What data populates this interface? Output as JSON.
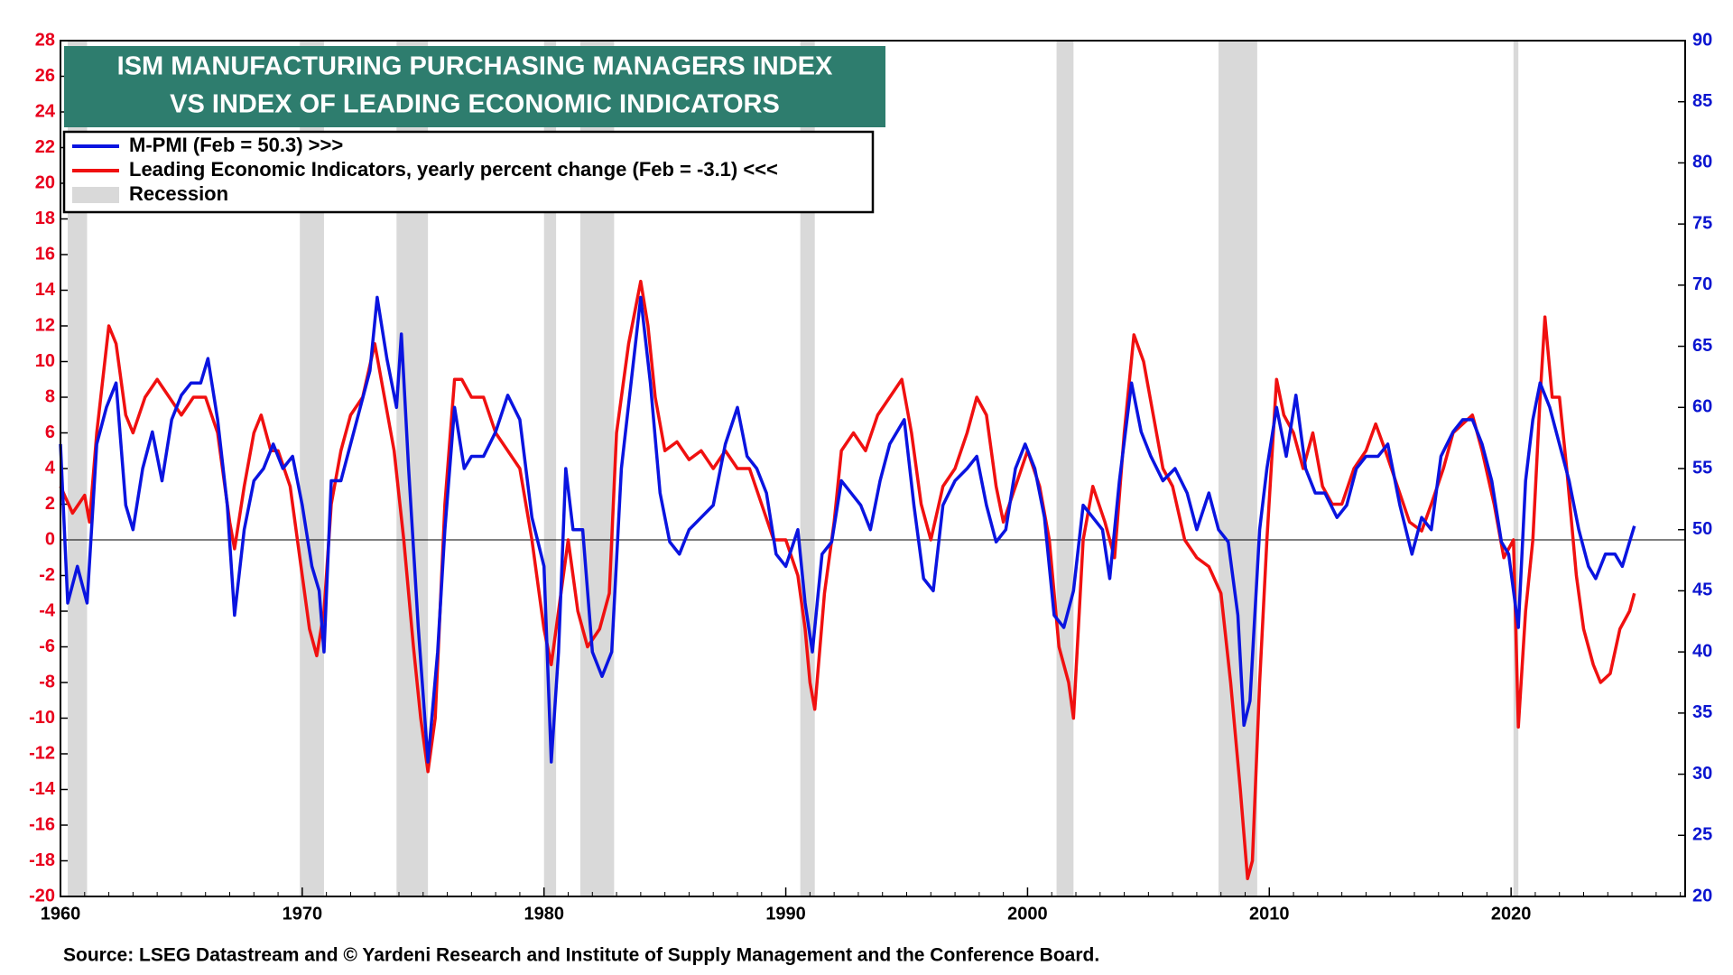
{
  "chart_data": {
    "type": "line",
    "title": [
      "ISM MANUFACTURING PURCHASING MANAGERS INDEX",
      "VS INDEX OF LEADING  ECONOMIC  INDICATORS"
    ],
    "source": "Source: LSEG Datastream and © Yardeni Research and Institute of Supply Management and the Conference Board.",
    "xlim": [
      1960,
      2027.2
    ],
    "xticks": [
      1960,
      1970,
      1980,
      1990,
      2000,
      2010,
      2020
    ],
    "ylim": [
      -20,
      28
    ],
    "yticks": [
      -20,
      -18,
      -16,
      -14,
      -12,
      -10,
      -8,
      -6,
      -4,
      -2,
      0,
      2,
      4,
      6,
      8,
      10,
      12,
      14,
      16,
      18,
      20,
      22,
      24,
      26,
      28
    ],
    "ytick_color": "#e8001c",
    "y2lim": [
      20,
      90
    ],
    "y2ticks": [
      20,
      25,
      30,
      35,
      40,
      45,
      50,
      55,
      60,
      65,
      70,
      75,
      80,
      85,
      90
    ],
    "y2tick_color": "#0a14d0",
    "reference_line": 0,
    "recession_label": "Recession",
    "recession_color": "#d9d9d9",
    "recessions": [
      [
        1960.3,
        1961.1
      ],
      [
        1969.9,
        1970.9
      ],
      [
        1973.9,
        1975.2
      ],
      [
        1980.0,
        1980.5
      ],
      [
        1981.5,
        1982.9
      ],
      [
        1990.6,
        1991.2
      ],
      [
        2001.2,
        2001.9
      ],
      [
        2007.9,
        2009.5
      ],
      [
        2020.1,
        2020.3
      ]
    ],
    "series": [
      {
        "name": "M-PMI (Feb = 50.3) >>>",
        "color": "#0a14e0",
        "axis": "y2",
        "x": [
          1960.0,
          1960.3,
          1960.7,
          1961.1,
          1961.5,
          1961.9,
          1962.3,
          1962.7,
          1963.0,
          1963.4,
          1963.8,
          1964.2,
          1964.6,
          1965.0,
          1965.4,
          1965.8,
          1966.1,
          1966.5,
          1966.9,
          1967.2,
          1967.6,
          1968.0,
          1968.4,
          1968.8,
          1969.2,
          1969.6,
          1970.0,
          1970.4,
          1970.7,
          1970.9,
          1971.2,
          1971.6,
          1972.0,
          1972.4,
          1972.8,
          1973.1,
          1973.5,
          1973.9,
          1974.1,
          1974.4,
          1974.8,
          1975.2,
          1975.6,
          1975.9,
          1976.3,
          1976.7,
          1977.0,
          1977.5,
          1978.0,
          1978.5,
          1979.0,
          1979.5,
          1980.0,
          1980.3,
          1980.6,
          1980.9,
          1981.2,
          1981.6,
          1982.0,
          1982.4,
          1982.8,
          1983.2,
          1983.6,
          1984.0,
          1984.4,
          1984.8,
          1985.2,
          1985.6,
          1986.0,
          1986.5,
          1987.0,
          1987.5,
          1988.0,
          1988.4,
          1988.8,
          1989.2,
          1989.6,
          1990.0,
          1990.5,
          1990.8,
          1991.1,
          1991.5,
          1991.9,
          1992.3,
          1992.7,
          1993.1,
          1993.5,
          1993.9,
          1994.3,
          1994.9,
          1995.3,
          1995.7,
          1996.1,
          1996.5,
          1997.0,
          1997.5,
          1997.9,
          1998.3,
          1998.7,
          1999.1,
          1999.5,
          1999.9,
          2000.3,
          2000.7,
          2001.1,
          2001.5,
          2001.9,
          2002.3,
          2002.7,
          2003.1,
          2003.4,
          2003.8,
          2004.3,
          2004.7,
          2005.1,
          2005.6,
          2006.1,
          2006.6,
          2007.0,
          2007.5,
          2007.9,
          2008.3,
          2008.7,
          2008.95,
          2009.2,
          2009.6,
          2009.9,
          2010.3,
          2010.7,
          2011.1,
          2011.5,
          2011.9,
          2012.3,
          2012.8,
          2013.2,
          2013.6,
          2014.0,
          2014.5,
          2014.9,
          2015.4,
          2015.9,
          2016.3,
          2016.7,
          2017.1,
          2017.6,
          2018.0,
          2018.4,
          2018.8,
          2019.2,
          2019.6,
          2019.9,
          2020.3,
          2020.6,
          2020.9,
          2021.2,
          2021.6,
          2022.0,
          2022.4,
          2022.8,
          2023.2,
          2023.5,
          2023.9,
          2024.3,
          2024.6,
          2024.9,
          2025.1
        ],
        "values": [
          57,
          44,
          47,
          44,
          57,
          60,
          62,
          52,
          50,
          55,
          58,
          54,
          59,
          61,
          62,
          62,
          64,
          59,
          52,
          43,
          50,
          54,
          55,
          57,
          55,
          56,
          52,
          47,
          45,
          40,
          54,
          54,
          57,
          60,
          63,
          69,
          64,
          60,
          66,
          55,
          42,
          31,
          40,
          50,
          60,
          55,
          56,
          56,
          58,
          61,
          59,
          51,
          47,
          31,
          40,
          55,
          50,
          50,
          40,
          38,
          40,
          55,
          62,
          69,
          62,
          53,
          49,
          48,
          50,
          51,
          52,
          57,
          60,
          56,
          55,
          53,
          48,
          47,
          50,
          44,
          40,
          48,
          49,
          54,
          53,
          52,
          50,
          54,
          57,
          59,
          52,
          46,
          45,
          52,
          54,
          55,
          56,
          52,
          49,
          50,
          55,
          57,
          55,
          51,
          43,
          42,
          45,
          52,
          51,
          50,
          46,
          54,
          62,
          58,
          56,
          54,
          55,
          53,
          50,
          53,
          50,
          49,
          43,
          34,
          36,
          50,
          55,
          60,
          56,
          61,
          55,
          53,
          53,
          51,
          52,
          55,
          56,
          56,
          57,
          52,
          48,
          51,
          50,
          56,
          58,
          59,
          59,
          57,
          54,
          49,
          48,
          42,
          54,
          59,
          62,
          60,
          57,
          54,
          50,
          47,
          46,
          48,
          48,
          47,
          49,
          50.3
        ]
      },
      {
        "name": "Leading Economic Indicators, yearly percent change (Feb = -3.1) <<<",
        "color": "#f01010",
        "axis": "y",
        "x": [
          1960.0,
          1960.5,
          1961.0,
          1961.2,
          1961.5,
          1962.0,
          1962.3,
          1962.7,
          1963.0,
          1963.5,
          1964.0,
          1964.5,
          1965.0,
          1965.5,
          1966.0,
          1966.5,
          1967.0,
          1967.2,
          1967.6,
          1968.0,
          1968.3,
          1968.7,
          1969.0,
          1969.5,
          1970.0,
          1970.3,
          1970.6,
          1970.9,
          1971.2,
          1971.6,
          1972.0,
          1972.5,
          1973.0,
          1973.4,
          1973.8,
          1974.2,
          1974.6,
          1974.9,
          1975.2,
          1975.5,
          1975.9,
          1976.3,
          1976.6,
          1977.0,
          1977.5,
          1978.0,
          1978.5,
          1979.0,
          1979.5,
          1980.0,
          1980.3,
          1980.6,
          1981.0,
          1981.4,
          1981.8,
          1982.3,
          1982.7,
          1983.0,
          1983.5,
          1984.0,
          1984.3,
          1984.6,
          1985.0,
          1985.5,
          1986.0,
          1986.5,
          1987.0,
          1987.5,
          1988.0,
          1988.5,
          1989.0,
          1989.5,
          1990.0,
          1990.5,
          1990.8,
          1991.0,
          1991.2,
          1991.6,
          1992.0,
          1992.3,
          1992.8,
          1993.3,
          1993.8,
          1994.3,
          1994.8,
          1995.2,
          1995.6,
          1996.0,
          1996.5,
          1997.0,
          1997.5,
          1997.9,
          1998.3,
          1998.7,
          1999.0,
          1999.5,
          2000.0,
          2000.5,
          2000.9,
          2001.3,
          2001.7,
          2001.9,
          2002.3,
          2002.7,
          2003.2,
          2003.6,
          2004.0,
          2004.4,
          2004.8,
          2005.2,
          2005.6,
          2006.0,
          2006.5,
          2007.0,
          2007.5,
          2008.0,
          2008.4,
          2008.8,
          2009.1,
          2009.3,
          2009.6,
          2009.9,
          2010.3,
          2010.6,
          2011.0,
          2011.4,
          2011.8,
          2012.2,
          2012.6,
          2013.0,
          2013.5,
          2014.0,
          2014.4,
          2014.8,
          2015.3,
          2015.8,
          2016.3,
          2016.7,
          2017.2,
          2017.6,
          2018.0,
          2018.4,
          2018.8,
          2019.3,
          2019.7,
          2020.1,
          2020.3,
          2020.6,
          2020.9,
          2021.2,
          2021.4,
          2021.7,
          2022.0,
          2022.3,
          2022.7,
          2023.0,
          2023.4,
          2023.7,
          2024.1,
          2024.5,
          2024.9,
          2025.1
        ],
        "values": [
          3,
          1.5,
          2.5,
          1,
          6,
          12,
          11,
          7,
          6,
          8,
          9,
          8,
          7,
          8,
          8,
          6,
          1,
          -0.5,
          3,
          6,
          7,
          5,
          5,
          3,
          -2,
          -5,
          -6.5,
          -4,
          2,
          5,
          7,
          8,
          11,
          8,
          5,
          0,
          -6,
          -10,
          -13,
          -10,
          2,
          9,
          9,
          8,
          8,
          6,
          5,
          4,
          0,
          -5,
          -7,
          -4,
          0,
          -4,
          -6,
          -5,
          -3,
          6,
          11,
          14.5,
          12,
          8,
          5,
          5.5,
          4.5,
          5,
          4,
          5,
          4,
          4,
          2,
          0,
          0,
          -2,
          -5,
          -8,
          -9.5,
          -3,
          1,
          5,
          6,
          5,
          7,
          8,
          9,
          6,
          2,
          0,
          3,
          4,
          6,
          8,
          7,
          3,
          1,
          3,
          5,
          3,
          0,
          -6,
          -8,
          -10,
          0,
          3,
          1,
          -1,
          6,
          11.5,
          10,
          7,
          4,
          3,
          0,
          -1,
          -1.5,
          -3,
          -8,
          -14,
          -19,
          -18,
          -8,
          0,
          9,
          7,
          6,
          4,
          6,
          3,
          2,
          2,
          4,
          5,
          6.5,
          5,
          3,
          1,
          0.5,
          2,
          4,
          6,
          6.5,
          7,
          5,
          2,
          -1,
          0,
          -10.5,
          -4,
          0,
          8,
          12.5,
          8,
          8,
          4,
          -2,
          -5,
          -7,
          -8,
          -7.5,
          -5,
          -4,
          -3
        ]
      }
    ]
  }
}
